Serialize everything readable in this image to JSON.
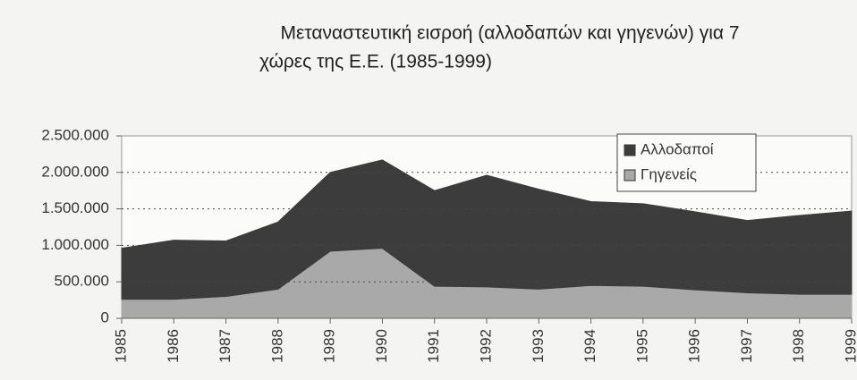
{
  "chart_data": {
    "type": "stacked_area",
    "title": [
      "Μεταναστευτική εισροή (αλλοδαπών και γηγενών) για 7",
      "χώρες της Ε.Ε. (1985-1999)"
    ],
    "categories": [
      "1985",
      "1986",
      "1987",
      "1988",
      "1989",
      "1990",
      "1991",
      "1992",
      "1993",
      "1994",
      "1995",
      "1996",
      "1997",
      "1998",
      "1999"
    ],
    "series": [
      {
        "name": "Αλλοδαποί",
        "color": "#3c3c3c",
        "values": [
          700000,
          810000,
          760000,
          920000,
          1080000,
          1210000,
          1310000,
          1530000,
          1370000,
          1150000,
          1130000,
          1070000,
          990000,
          1080000,
          1140000
        ]
      },
      {
        "name": "Γηγενείς",
        "color": "#a9a9a9",
        "values": [
          260000,
          260000,
          300000,
          400000,
          920000,
          960000,
          440000,
          430000,
          400000,
          450000,
          440000,
          390000,
          350000,
          330000,
          330000
        ]
      }
    ],
    "ylim": [
      0,
      2500000
    ],
    "yticks": [
      0,
      {
        "value": 500000,
        "label": "500.000"
      },
      {
        "value": 1000000,
        "label": "1.000.000"
      },
      {
        "value": 1500000,
        "label": "1.500.000"
      },
      {
        "value": 2000000,
        "label": "2.000.000"
      },
      {
        "value": 2500000,
        "label": "2.500.000"
      }
    ],
    "grid": true,
    "legend": "top-right"
  }
}
